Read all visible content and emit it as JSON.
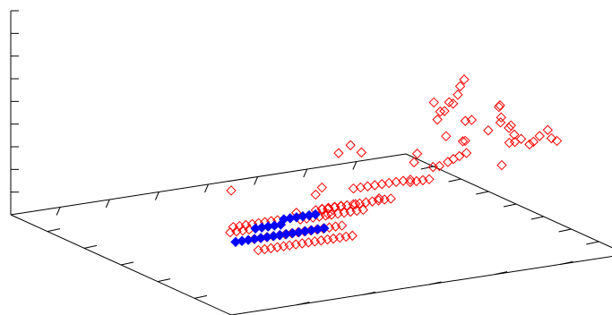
{
  "chart_data": {
    "type": "scatter",
    "projection": "3d",
    "grid": false,
    "legend": "none",
    "title": "",
    "xlabel": "",
    "ylabel": "",
    "zlabel": "",
    "style": {
      "axis_color": "#000000",
      "red_color": "#ff0000",
      "blue_color": "#0000ff"
    },
    "series": [
      {
        "marker": "hollow-diamond",
        "color": "#ff0000",
        "points": [
          {
            "x": 0.0,
            "y": 1.0,
            "z": 0.61
          },
          {
            "x": 0.022,
            "y": 0.97,
            "z": 0.41
          },
          {
            "x": 0.038,
            "y": 0.97,
            "z": 0.41
          },
          {
            "x": 0.054,
            "y": 0.97,
            "z": 0.41
          },
          {
            "x": 0.07,
            "y": 0.97,
            "z": 0.41
          },
          {
            "x": 0.086,
            "y": 0.97,
            "z": 0.41
          },
          {
            "x": 0.102,
            "y": 0.97,
            "z": 0.41
          },
          {
            "x": 0.118,
            "y": 0.97,
            "z": 0.41
          },
          {
            "x": 0.134,
            "y": 0.97,
            "z": 0.41
          },
          {
            "x": 0.07,
            "y": 0.87,
            "z": 0.32
          },
          {
            "x": 0.086,
            "y": 0.87,
            "z": 0.32
          },
          {
            "x": 0.102,
            "y": 0.87,
            "z": 0.32
          },
          {
            "x": 0.118,
            "y": 0.87,
            "z": 0.32
          },
          {
            "x": 0.236,
            "y": 0.96,
            "z": 0.5
          },
          {
            "x": 0.252,
            "y": 0.96,
            "z": 0.53
          },
          {
            "x": 0.267,
            "y": 0.96,
            "z": 0.42
          },
          {
            "x": 0.181,
            "y": 0.78,
            "z": 0.21
          },
          {
            "x": 0.197,
            "y": 0.78,
            "z": 0.21
          },
          {
            "x": 0.213,
            "y": 0.78,
            "z": 0.21
          },
          {
            "x": 0.229,
            "y": 0.78,
            "z": 0.21
          },
          {
            "x": 0.245,
            "y": 0.78,
            "z": 0.21
          },
          {
            "x": 0.26,
            "y": 0.78,
            "z": 0.21
          },
          {
            "x": 0.276,
            "y": 0.78,
            "z": 0.21
          },
          {
            "x": 0.292,
            "y": 0.78,
            "z": 0.21
          },
          {
            "x": 0.308,
            "y": 0.78,
            "z": 0.21
          },
          {
            "x": 0.324,
            "y": 0.78,
            "z": 0.21
          },
          {
            "x": 0.34,
            "y": 0.78,
            "z": 0.21
          },
          {
            "x": 0.356,
            "y": 0.78,
            "z": 0.21
          },
          {
            "x": 0.371,
            "y": 0.78,
            "z": 0.21
          },
          {
            "x": 0.387,
            "y": 0.78,
            "z": 0.21
          },
          {
            "x": 0.403,
            "y": 0.78,
            "z": 0.21
          },
          {
            "x": 0.236,
            "y": 0.7,
            "z": 0.1
          },
          {
            "x": 0.252,
            "y": 0.7,
            "z": 0.1
          },
          {
            "x": 0.268,
            "y": 0.7,
            "z": 0.1
          },
          {
            "x": 0.284,
            "y": 0.7,
            "z": 0.1
          },
          {
            "x": 0.3,
            "y": 0.7,
            "z": 0.1
          },
          {
            "x": 0.315,
            "y": 0.7,
            "z": 0.1
          },
          {
            "x": 0.331,
            "y": 0.7,
            "z": 0.1
          },
          {
            "x": 0.347,
            "y": 0.7,
            "z": 0.1
          },
          {
            "x": 0.363,
            "y": 0.7,
            "z": 0.1
          },
          {
            "x": 0.379,
            "y": 0.7,
            "z": 0.1
          },
          {
            "x": 0.395,
            "y": 0.7,
            "z": 0.1
          },
          {
            "x": 0.411,
            "y": 0.7,
            "z": 0.1
          },
          {
            "x": 0.426,
            "y": 0.7,
            "z": 0.1
          },
          {
            "x": 0.442,
            "y": 0.7,
            "z": 0.1
          },
          {
            "x": 0.458,
            "y": 0.7,
            "z": 0.1
          },
          {
            "x": 0.474,
            "y": 0.7,
            "z": 0.1
          },
          {
            "x": 0.46,
            "y": 0.73,
            "z": 0.35
          },
          {
            "x": 0.478,
            "y": 0.73,
            "z": 0.35
          },
          {
            "x": 0.496,
            "y": 0.73,
            "z": 0.35
          },
          {
            "x": 0.514,
            "y": 0.73,
            "z": 0.35
          },
          {
            "x": 0.532,
            "y": 0.73,
            "z": 0.35
          },
          {
            "x": 0.55,
            "y": 0.73,
            "z": 0.35
          },
          {
            "x": 0.568,
            "y": 0.73,
            "z": 0.35
          },
          {
            "x": 0.586,
            "y": 0.73,
            "z": 0.35
          },
          {
            "x": 0.604,
            "y": 0.73,
            "z": 0.35
          },
          {
            "x": 0.426,
            "y": 0.62,
            "z": 0.2
          },
          {
            "x": 0.442,
            "y": 0.62,
            "z": 0.2
          },
          {
            "x": 0.458,
            "y": 0.62,
            "z": 0.2
          },
          {
            "x": 0.474,
            "y": 0.62,
            "z": 0.2
          },
          {
            "x": 0.49,
            "y": 0.62,
            "z": 0.2
          },
          {
            "x": 0.505,
            "y": 0.62,
            "z": 0.2
          },
          {
            "x": 0.521,
            "y": 0.62,
            "z": 0.2
          },
          {
            "x": 0.537,
            "y": 0.62,
            "z": 0.2
          },
          {
            "x": 0.553,
            "y": 0.62,
            "z": 0.2
          },
          {
            "x": 0.569,
            "y": 0.62,
            "z": 0.2
          },
          {
            "x": 0.585,
            "y": 0.62,
            "z": 0.2
          },
          {
            "x": 0.6,
            "y": 0.62,
            "z": 0.2
          },
          {
            "x": 0.616,
            "y": 0.62,
            "z": 0.2
          },
          {
            "x": 0.426,
            "y": 0.55,
            "z": 0.12
          },
          {
            "x": 0.442,
            "y": 0.55,
            "z": 0.12
          },
          {
            "x": 0.458,
            "y": 0.55,
            "z": 0.12
          },
          {
            "x": 0.474,
            "y": 0.55,
            "z": 0.12
          },
          {
            "x": 0.49,
            "y": 0.55,
            "z": 0.12
          },
          {
            "x": 0.505,
            "y": 0.55,
            "z": 0.12
          },
          {
            "x": 0.521,
            "y": 0.55,
            "z": 0.12
          },
          {
            "x": 0.537,
            "y": 0.55,
            "z": 0.12
          },
          {
            "x": 0.553,
            "y": 0.55,
            "z": 0.12
          },
          {
            "x": 0.569,
            "y": 0.55,
            "z": 0.12
          },
          {
            "x": 0.585,
            "y": 0.55,
            "z": 0.12
          },
          {
            "x": 0.455,
            "y": 0.48,
            "z": 0.11
          },
          {
            "x": 0.52,
            "y": 0.48,
            "z": 0.11
          },
          {
            "x": 0.536,
            "y": 0.48,
            "z": 0.11
          },
          {
            "x": 0.552,
            "y": 0.48,
            "z": 0.11
          },
          {
            "x": 0.568,
            "y": 0.48,
            "z": 0.11
          },
          {
            "x": 0.552,
            "y": 0.45,
            "z": 0.06
          },
          {
            "x": 0.56,
            "y": 0.56,
            "z": 0.16
          },
          {
            "x": 0.586,
            "y": 0.62,
            "z": 0.21
          },
          {
            "x": 0.35,
            "y": 0.86,
            "z": 0.62
          },
          {
            "x": 0.38,
            "y": 0.86,
            "z": 0.65
          },
          {
            "x": 0.43,
            "y": 0.82,
            "z": 0.58
          },
          {
            "x": 0.58,
            "y": 0.88,
            "z": 0.81
          },
          {
            "x": 0.596,
            "y": 0.88,
            "z": 0.76
          },
          {
            "x": 0.6,
            "y": 0.86,
            "z": 0.71
          },
          {
            "x": 0.64,
            "y": 0.82,
            "z": 0.72
          },
          {
            "x": 0.652,
            "y": 0.82,
            "z": 0.76
          },
          {
            "x": 0.662,
            "y": 0.82,
            "z": 0.75
          },
          {
            "x": 0.674,
            "y": 0.82,
            "z": 0.79
          },
          {
            "x": 0.68,
            "y": 0.82,
            "z": 0.83
          },
          {
            "x": 0.69,
            "y": 0.82,
            "z": 0.86
          },
          {
            "x": 0.658,
            "y": 0.65,
            "z": 0.38
          },
          {
            "x": 0.666,
            "y": 0.65,
            "z": 0.42
          },
          {
            "x": 0.7,
            "y": 0.72,
            "z": 0.53
          },
          {
            "x": 0.732,
            "y": 0.75,
            "z": 0.61
          },
          {
            "x": 0.748,
            "y": 0.75,
            "z": 0.61
          },
          {
            "x": 0.704,
            "y": 0.55,
            "z": 0.22
          },
          {
            "x": 0.72,
            "y": 0.55,
            "z": 0.22
          },
          {
            "x": 0.736,
            "y": 0.55,
            "z": 0.22
          },
          {
            "x": 0.752,
            "y": 0.55,
            "z": 0.22
          },
          {
            "x": 0.734,
            "y": 0.6,
            "z": 0.31
          },
          {
            "x": 0.75,
            "y": 0.6,
            "z": 0.31
          },
          {
            "x": 0.766,
            "y": 0.61,
            "z": 0.33
          },
          {
            "x": 0.78,
            "y": 0.61,
            "z": 0.34
          },
          {
            "x": 0.795,
            "y": 0.61,
            "z": 0.35
          },
          {
            "x": 0.813,
            "y": 0.61,
            "z": 0.36
          },
          {
            "x": 0.787,
            "y": 0.64,
            "z": 0.44
          },
          {
            "x": 0.793,
            "y": 0.64,
            "z": 0.44
          },
          {
            "x": 0.829,
            "y": 0.68,
            "z": 0.5
          },
          {
            "x": 0.86,
            "y": 0.68,
            "z": 0.53
          },
          {
            "x": 0.845,
            "y": 0.7,
            "z": 0.62
          },
          {
            "x": 0.803,
            "y": 0.78,
            "z": 0.68
          },
          {
            "x": 0.806,
            "y": 0.78,
            "z": 0.62
          },
          {
            "x": 0.842,
            "y": 0.76,
            "z": 0.56
          },
          {
            "x": 0.86,
            "y": 0.72,
            "z": 0.45
          },
          {
            "x": 0.874,
            "y": 0.72,
            "z": 0.45
          },
          {
            "x": 0.87,
            "y": 0.7,
            "z": 0.51
          },
          {
            "x": 0.89,
            "y": 0.72,
            "z": 0.46
          },
          {
            "x": 0.878,
            "y": 0.71,
            "z": 0.48
          },
          {
            "x": 0.9,
            "y": 0.74,
            "z": 0.44
          },
          {
            "x": 0.91,
            "y": 0.74,
            "z": 0.45
          },
          {
            "x": 0.92,
            "y": 0.75,
            "z": 0.48
          },
          {
            "x": 0.935,
            "y": 0.76,
            "z": 0.51
          },
          {
            "x": 0.95,
            "y": 0.75,
            "z": 0.46
          },
          {
            "x": 0.975,
            "y": 0.73,
            "z": 0.43
          },
          {
            "x": 0.88,
            "y": 0.65,
            "z": 0.3
          }
        ]
      },
      {
        "marker": "filled-diamond",
        "color": "#0000ff",
        "points": [
          {
            "x": 0.15,
            "y": 0.97,
            "z": 0.41
          },
          {
            "x": 0.166,
            "y": 0.97,
            "z": 0.41
          },
          {
            "x": 0.182,
            "y": 0.97,
            "z": 0.41
          },
          {
            "x": 0.198,
            "y": 0.97,
            "z": 0.41
          },
          {
            "x": 0.214,
            "y": 0.97,
            "z": 0.41
          },
          {
            "x": 0.23,
            "y": 0.97,
            "z": 0.41
          },
          {
            "x": 0.134,
            "y": 0.87,
            "z": 0.32
          },
          {
            "x": 0.15,
            "y": 0.87,
            "z": 0.32
          },
          {
            "x": 0.166,
            "y": 0.87,
            "z": 0.32
          },
          {
            "x": 0.182,
            "y": 0.87,
            "z": 0.32
          },
          {
            "x": 0.198,
            "y": 0.87,
            "z": 0.32
          },
          {
            "x": 0.134,
            "y": 0.78,
            "z": 0.21
          },
          {
            "x": 0.15,
            "y": 0.78,
            "z": 0.21
          },
          {
            "x": 0.166,
            "y": 0.78,
            "z": 0.21
          },
          {
            "x": 0.182,
            "y": 0.78,
            "z": 0.21
          },
          {
            "x": 0.198,
            "y": 0.78,
            "z": 0.21
          },
          {
            "x": 0.214,
            "y": 0.78,
            "z": 0.21
          },
          {
            "x": 0.23,
            "y": 0.78,
            "z": 0.21
          },
          {
            "x": 0.246,
            "y": 0.78,
            "z": 0.21
          },
          {
            "x": 0.262,
            "y": 0.78,
            "z": 0.21
          },
          {
            "x": 0.278,
            "y": 0.78,
            "z": 0.21
          },
          {
            "x": 0.294,
            "y": 0.78,
            "z": 0.21
          },
          {
            "x": 0.31,
            "y": 0.78,
            "z": 0.21
          },
          {
            "x": 0.326,
            "y": 0.78,
            "z": 0.21
          },
          {
            "x": 0.342,
            "y": 0.78,
            "z": 0.21
          },
          {
            "x": 0.358,
            "y": 0.78,
            "z": 0.21
          }
        ]
      }
    ]
  }
}
